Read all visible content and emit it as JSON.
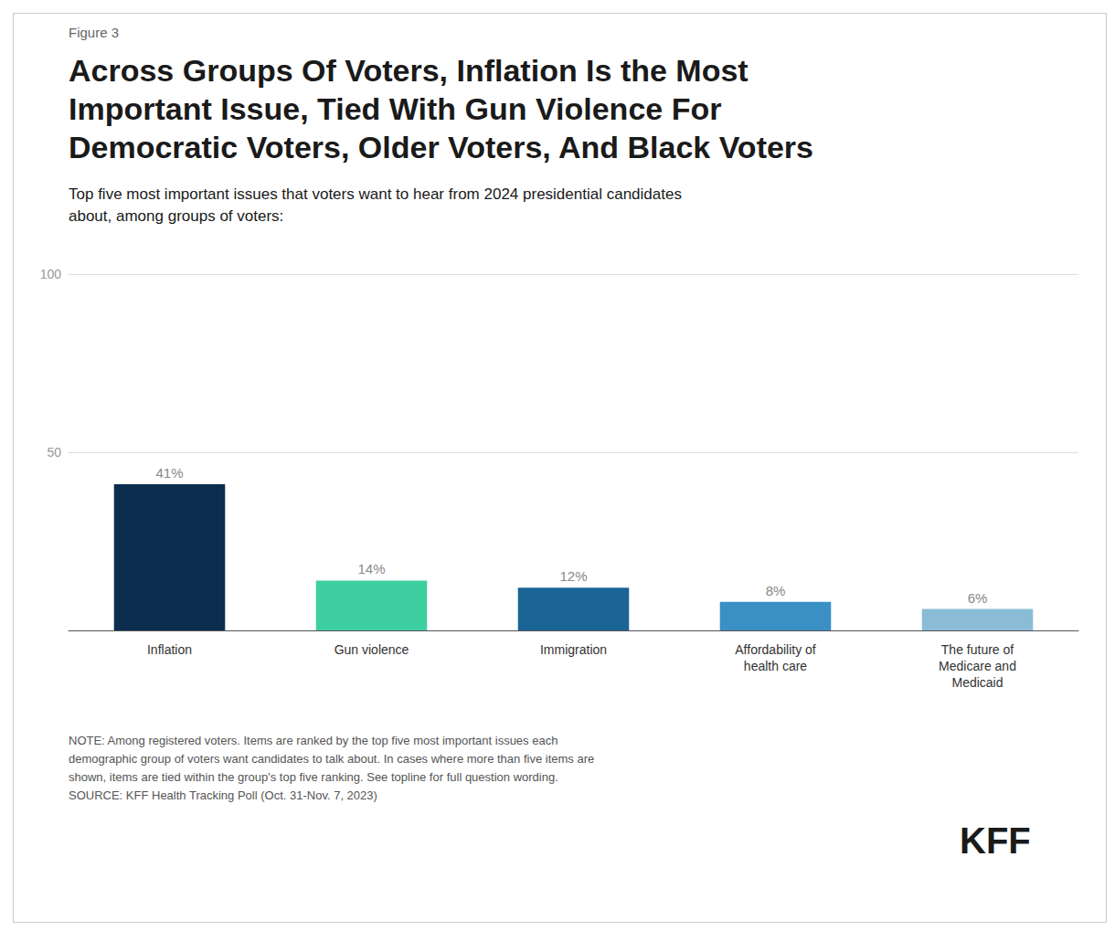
{
  "chart_data": {
    "type": "bar",
    "figure_label": "Figure 3",
    "title": "Across Groups Of Voters, Inflation Is the Most\nImportant Issue, Tied With Gun Violence For\nDemocratic Voters, Older Voters, And Black Voters",
    "subtitle": "Top five most important issues that voters want to hear from 2024 presidential candidates\nabout, among groups of voters:",
    "categories": [
      "Inflation",
      "Gun violence",
      "Immigration",
      "Affordability of\nhealth care",
      "The future of\nMedicare and\nMedicaid"
    ],
    "values": [
      41,
      14,
      12,
      8,
      6
    ],
    "value_labels": [
      "41%",
      "14%",
      "12%",
      "8%",
      "6%"
    ],
    "colors": [
      "#0d2d4e",
      "#3ecfa0",
      "#1a6496",
      "#3a8fc4",
      "#8bbcd6"
    ],
    "ylim": [
      0,
      100
    ],
    "yticks": [
      50,
      100
    ],
    "grid": true,
    "data_labels": true,
    "note": "NOTE: Among registered voters. Items are ranked by the top five most important issues each\ndemographic group of voters want candidates to talk about. In cases where more than five items are\nshown, items are tied within the group's top five ranking. See topline for full question wording.\nSOURCE: KFF Health Tracking Poll (Oct. 31-Nov. 7, 2023)",
    "logo": "KFF"
  }
}
